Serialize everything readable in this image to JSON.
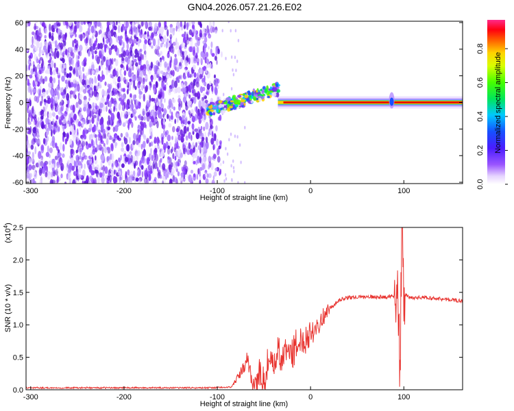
{
  "title": "GN04.2026.057.21.26.E02",
  "colors": {
    "snr_line": "#e8332f",
    "noise_purple": "#7d2cf0",
    "trace_red": "#e81400"
  },
  "chart_data": [
    {
      "type": "heatmap",
      "xlabel": "Height of straight line (km)",
      "ylabel": "Frequency (Hz)",
      "xlim": [
        -305,
        163
      ],
      "ylim": [
        -61,
        61
      ],
      "x_ticks": [
        "-300",
        "-200",
        "-100",
        "0",
        "100"
      ],
      "x_tick_values": [
        -300,
        -200,
        -100,
        0,
        100
      ],
      "y_ticks": [
        "-60",
        "-40",
        "-20",
        "0",
        "20",
        "40",
        "60"
      ],
      "y_tick_values": [
        -60,
        -40,
        -20,
        0,
        20,
        40,
        60
      ],
      "colorbar": {
        "label": "Normalized spectral amplitude",
        "range": [
          0,
          0.97
        ],
        "ticks": [
          "0.0",
          "0.2",
          "0.4",
          "0.6",
          "0.8"
        ],
        "tick_values": [
          0.0,
          0.2,
          0.4,
          0.6,
          0.8
        ],
        "colormap": "rainbow (white-violet-blue-cyan-green-yellow-orange-red-pink)"
      },
      "features": {
        "noise_region_x": [
          -305,
          -95
        ],
        "noise_amplitude": 0.2,
        "transition_region_x": [
          -110,
          -35
        ],
        "transition_frequency_hz": [
          -8,
          12
        ],
        "signal_trace_x": [
          -35,
          163
        ],
        "signal_trace_frequency_hz": 0,
        "signal_trace_amplitude": 0.95,
        "disturbance_x": 87
      }
    },
    {
      "type": "line",
      "xlabel": "Height of straight line (km)",
      "ylabel": "SNR (10 * v/v)",
      "y_multiplier": "(x10",
      "y_multiplier_exp": "4",
      "y_multiplier_close": ")",
      "xlim": [
        -305,
        163
      ],
      "ylim": [
        0,
        2.5
      ],
      "x_ticks": [
        "-300",
        "-200",
        "-100",
        "0",
        "100"
      ],
      "x_tick_values": [
        -300,
        -200,
        -100,
        0,
        100
      ],
      "y_ticks": [
        "0.0",
        "0.5",
        "1.0",
        "1.5",
        "2.0",
        "2.5"
      ],
      "y_tick_values": [
        0.0,
        0.5,
        1.0,
        1.5,
        2.0,
        2.5
      ],
      "series": [
        {
          "x": [
            -305,
            -250,
            -200,
            -150,
            -110,
            -85,
            -75,
            -68,
            -65,
            -60,
            -55,
            -50,
            -45,
            -40,
            -35,
            -30,
            -25,
            -20,
            -15,
            -10,
            -5,
            0,
            5,
            10,
            15,
            20,
            25,
            30,
            40,
            60,
            80,
            90,
            93,
            96,
            98,
            100,
            105,
            120,
            140,
            163
          ],
          "y": [
            0.03,
            0.03,
            0.03,
            0.03,
            0.03,
            0.04,
            0.25,
            0.45,
            0.3,
            0.05,
            0.25,
            0.1,
            0.5,
            0.3,
            0.6,
            0.45,
            0.65,
            0.55,
            0.7,
            0.75,
            0.8,
            0.9,
            0.95,
            1.05,
            1.15,
            1.25,
            1.3,
            1.38,
            1.42,
            1.43,
            1.43,
            1.45,
            1.7,
            0.3,
            2.45,
            1.5,
            1.42,
            1.42,
            1.4,
            1.37
          ]
        }
      ]
    }
  ]
}
